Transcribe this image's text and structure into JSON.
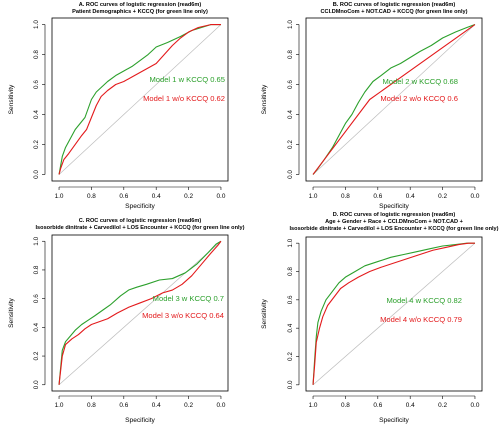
{
  "chart_data": [
    {
      "type": "line",
      "title": "A. ROC curves of logistic regression (read6m)",
      "subtitle": [
        "Patient Demographics + KCCQ (for green line only)"
      ],
      "xlabel": "Specificity",
      "ylabel": "Sensitivity",
      "xlim": [
        1.0,
        0.0
      ],
      "ylim": [
        0.0,
        1.0
      ],
      "x_ticks": [
        "1.0",
        "0.8",
        "0.6",
        "0.4",
        "0.2",
        "0.0"
      ],
      "y_ticks": [
        "0.0",
        "0.2",
        "0.4",
        "0.6",
        "0.8",
        "1.0"
      ],
      "legend_position": "center-right",
      "series": [
        {
          "name": "Model 1 w KCCQ 0.65",
          "color": "#2ca02c",
          "points": [
            [
              1.0,
              0.0
            ],
            [
              0.99,
              0.06
            ],
            [
              0.98,
              0.12
            ],
            [
              0.96,
              0.18
            ],
            [
              0.93,
              0.24
            ],
            [
              0.9,
              0.3
            ],
            [
              0.87,
              0.34
            ],
            [
              0.84,
              0.38
            ],
            [
              0.82,
              0.44
            ],
            [
              0.8,
              0.5
            ],
            [
              0.77,
              0.55
            ],
            [
              0.74,
              0.58
            ],
            [
              0.7,
              0.62
            ],
            [
              0.65,
              0.66
            ],
            [
              0.6,
              0.69
            ],
            [
              0.55,
              0.72
            ],
            [
              0.5,
              0.76
            ],
            [
              0.45,
              0.8
            ],
            [
              0.4,
              0.85
            ],
            [
              0.33,
              0.88
            ],
            [
              0.25,
              0.92
            ],
            [
              0.18,
              0.96
            ],
            [
              0.12,
              0.98
            ],
            [
              0.06,
              1.0
            ],
            [
              0.0,
              1.0
            ]
          ]
        },
        {
          "name": "Model 1 w/o KCCQ 0.62",
          "color": "#e31a1c",
          "points": [
            [
              1.0,
              0.0
            ],
            [
              0.99,
              0.04
            ],
            [
              0.97,
              0.1
            ],
            [
              0.94,
              0.14
            ],
            [
              0.9,
              0.2
            ],
            [
              0.86,
              0.26
            ],
            [
              0.83,
              0.3
            ],
            [
              0.8,
              0.38
            ],
            [
              0.77,
              0.46
            ],
            [
              0.74,
              0.52
            ],
            [
              0.7,
              0.56
            ],
            [
              0.65,
              0.6
            ],
            [
              0.6,
              0.62
            ],
            [
              0.55,
              0.65
            ],
            [
              0.5,
              0.68
            ],
            [
              0.45,
              0.71
            ],
            [
              0.4,
              0.74
            ],
            [
              0.35,
              0.8
            ],
            [
              0.3,
              0.86
            ],
            [
              0.25,
              0.91
            ],
            [
              0.2,
              0.95
            ],
            [
              0.14,
              0.98
            ],
            [
              0.06,
              1.0
            ],
            [
              0.0,
              1.0
            ]
          ]
        }
      ]
    },
    {
      "type": "line",
      "title": "B. ROC curves of logistic regression (read6m)",
      "subtitle": [
        "CCI.DMnoCom + NOT.CAD + KCCQ (for green line only)"
      ],
      "xlabel": "Specificity",
      "ylabel": "Sensitivity",
      "xlim": [
        1.0,
        0.0
      ],
      "ylim": [
        0.0,
        1.0
      ],
      "x_ticks": [
        "1.0",
        "0.8",
        "0.6",
        "0.4",
        "0.2",
        "0.0"
      ],
      "y_ticks": [
        "0.0",
        "0.2",
        "0.4",
        "0.6",
        "0.8",
        "1.0"
      ],
      "legend_position": "center-right",
      "series": [
        {
          "name": "Model 2 w KCCQ 0.68",
          "color": "#2ca02c",
          "points": [
            [
              1.0,
              0.0
            ],
            [
              0.97,
              0.04
            ],
            [
              0.93,
              0.1
            ],
            [
              0.88,
              0.18
            ],
            [
              0.84,
              0.26
            ],
            [
              0.8,
              0.34
            ],
            [
              0.76,
              0.4
            ],
            [
              0.72,
              0.48
            ],
            [
              0.68,
              0.55
            ],
            [
              0.63,
              0.62
            ],
            [
              0.58,
              0.66
            ],
            [
              0.52,
              0.71
            ],
            [
              0.46,
              0.74
            ],
            [
              0.4,
              0.78
            ],
            [
              0.34,
              0.82
            ],
            [
              0.27,
              0.86
            ],
            [
              0.2,
              0.91
            ],
            [
              0.12,
              0.95
            ],
            [
              0.05,
              0.98
            ],
            [
              0.0,
              1.0
            ]
          ]
        },
        {
          "name": "Model 2 w/o KCCQ 0.6",
          "color": "#e31a1c",
          "points": [
            [
              1.0,
              0.0
            ],
            [
              0.65,
              0.5
            ],
            [
              0.0,
              1.0
            ]
          ]
        }
      ]
    },
    {
      "type": "line",
      "title": "C. ROC curves of logistic regression (read6m)",
      "subtitle": [
        "Isosorbide dinitrate + Carvedilol + LOS Encounter + KCCQ (for green line only)"
      ],
      "xlabel": "Specificity",
      "ylabel": "Sensitivity",
      "xlim": [
        1.0,
        0.0
      ],
      "ylim": [
        0.0,
        1.0
      ],
      "x_ticks": [
        "1.0",
        "0.8",
        "0.6",
        "0.4",
        "0.2",
        "0.0"
      ],
      "y_ticks": [
        "0.0",
        "0.2",
        "0.4",
        "0.6",
        "0.8",
        "1.0"
      ],
      "legend_position": "center-right",
      "series": [
        {
          "name": "Model 3 w KCCQ 0.7",
          "color": "#2ca02c",
          "points": [
            [
              1.0,
              0.0
            ],
            [
              0.99,
              0.12
            ],
            [
              0.98,
              0.24
            ],
            [
              0.96,
              0.3
            ],
            [
              0.93,
              0.34
            ],
            [
              0.9,
              0.38
            ],
            [
              0.86,
              0.42
            ],
            [
              0.82,
              0.45
            ],
            [
              0.78,
              0.48
            ],
            [
              0.73,
              0.52
            ],
            [
              0.68,
              0.56
            ],
            [
              0.62,
              0.62
            ],
            [
              0.57,
              0.66
            ],
            [
              0.52,
              0.68
            ],
            [
              0.46,
              0.7
            ],
            [
              0.38,
              0.73
            ],
            [
              0.3,
              0.74
            ],
            [
              0.22,
              0.78
            ],
            [
              0.15,
              0.84
            ],
            [
              0.08,
              0.92
            ],
            [
              0.03,
              0.98
            ],
            [
              0.0,
              1.0
            ]
          ]
        },
        {
          "name": "Model 3 w/o KCCQ 0.64",
          "color": "#e31a1c",
          "points": [
            [
              1.0,
              0.0
            ],
            [
              0.99,
              0.1
            ],
            [
              0.98,
              0.2
            ],
            [
              0.96,
              0.28
            ],
            [
              0.92,
              0.32
            ],
            [
              0.88,
              0.35
            ],
            [
              0.84,
              0.39
            ],
            [
              0.8,
              0.42
            ],
            [
              0.75,
              0.44
            ],
            [
              0.7,
              0.46
            ],
            [
              0.64,
              0.5
            ],
            [
              0.57,
              0.54
            ],
            [
              0.5,
              0.57
            ],
            [
              0.43,
              0.6
            ],
            [
              0.36,
              0.64
            ],
            [
              0.3,
              0.66
            ],
            [
              0.24,
              0.7
            ],
            [
              0.18,
              0.76
            ],
            [
              0.12,
              0.84
            ],
            [
              0.06,
              0.92
            ],
            [
              0.02,
              0.97
            ],
            [
              0.0,
              1.0
            ]
          ]
        }
      ]
    },
    {
      "type": "line",
      "title": "D. ROC curves of logistic regression (read6m)",
      "subtitle": [
        "Age + Gender + Race + CCI.DMnoCom + NOT.CAD +",
        "Isosorbide dinitrate + Carvedilol + LOS Encounter + KCCQ (for green line only)"
      ],
      "xlabel": "Specificity",
      "ylabel": "Sensitivity",
      "xlim": [
        1.0,
        0.0
      ],
      "ylim": [
        0.0,
        1.0
      ],
      "x_ticks": [
        "1.0",
        "0.8",
        "0.6",
        "0.4",
        "0.2",
        "0.0"
      ],
      "y_ticks": [
        "0.0",
        "0.2",
        "0.4",
        "0.6",
        "0.8",
        "1.0"
      ],
      "legend_position": "center-right",
      "series": [
        {
          "name": "Model 4 w KCCQ 0.82",
          "color": "#2ca02c",
          "points": [
            [
              1.0,
              0.0
            ],
            [
              0.99,
              0.18
            ],
            [
              0.98,
              0.34
            ],
            [
              0.97,
              0.44
            ],
            [
              0.95,
              0.52
            ],
            [
              0.92,
              0.6
            ],
            [
              0.88,
              0.66
            ],
            [
              0.84,
              0.72
            ],
            [
              0.8,
              0.76
            ],
            [
              0.74,
              0.8
            ],
            [
              0.68,
              0.84
            ],
            [
              0.6,
              0.87
            ],
            [
              0.52,
              0.9
            ],
            [
              0.44,
              0.92
            ],
            [
              0.36,
              0.94
            ],
            [
              0.28,
              0.96
            ],
            [
              0.2,
              0.98
            ],
            [
              0.12,
              0.99
            ],
            [
              0.05,
              1.0
            ],
            [
              0.0,
              1.0
            ]
          ]
        },
        {
          "name": "Model 4 w/o KCCQ 0.79",
          "color": "#e31a1c",
          "points": [
            [
              1.0,
              0.0
            ],
            [
              0.99,
              0.14
            ],
            [
              0.98,
              0.3
            ],
            [
              0.96,
              0.4
            ],
            [
              0.94,
              0.48
            ],
            [
              0.91,
              0.56
            ],
            [
              0.87,
              0.62
            ],
            [
              0.83,
              0.68
            ],
            [
              0.78,
              0.72
            ],
            [
              0.72,
              0.76
            ],
            [
              0.65,
              0.8
            ],
            [
              0.58,
              0.83
            ],
            [
              0.5,
              0.86
            ],
            [
              0.42,
              0.89
            ],
            [
              0.34,
              0.92
            ],
            [
              0.26,
              0.95
            ],
            [
              0.18,
              0.97
            ],
            [
              0.1,
              0.99
            ],
            [
              0.04,
              1.0
            ],
            [
              0.0,
              1.0
            ]
          ]
        }
      ]
    }
  ]
}
